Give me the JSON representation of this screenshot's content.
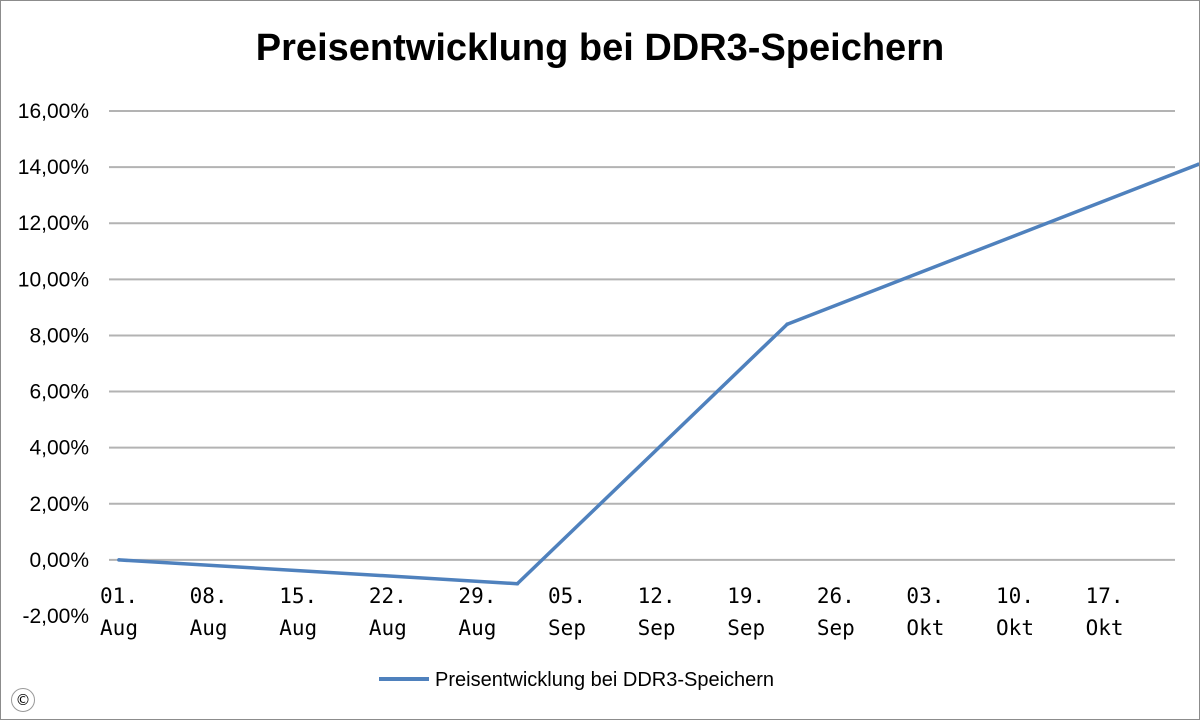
{
  "chart_data": {
    "type": "line",
    "title": "Preisentwicklung bei DDR3-Speichern",
    "x_labels": [
      [
        "01.",
        "Aug"
      ],
      [
        "08.",
        "Aug"
      ],
      [
        "15.",
        "Aug"
      ],
      [
        "22.",
        "Aug"
      ],
      [
        "29.",
        "Aug"
      ],
      [
        "05.",
        "Sep"
      ],
      [
        "12.",
        "Sep"
      ],
      [
        "19.",
        "Sep"
      ],
      [
        "26.",
        "Sep"
      ],
      [
        "03.",
        "Okt"
      ],
      [
        "10.",
        "Okt"
      ],
      [
        "17.",
        "Okt"
      ]
    ],
    "y_ticks": [
      "-2,00%",
      "0,00%",
      "2,00%",
      "4,00%",
      "6,00%",
      "8,00%",
      "10,00%",
      "12,00%",
      "14,00%",
      "16,00%"
    ],
    "y_tick_values": [
      -2,
      0,
      2,
      4,
      6,
      8,
      10,
      12,
      14,
      16
    ],
    "ylim": [
      -2,
      16
    ],
    "series": [
      {
        "name": "Preisentwicklung bei DDR3-Speichern",
        "color": "#4f81bd",
        "points": [
          {
            "x": "01. Aug",
            "y": 0.0
          },
          {
            "x": "01. Sep",
            "y": -0.85
          },
          {
            "x": "22. Sep",
            "y": 8.4
          },
          {
            "x": "24. Okt",
            "y": 14.1
          }
        ]
      }
    ],
    "grid": true,
    "legend_position": "bottom"
  },
  "badge": "©"
}
